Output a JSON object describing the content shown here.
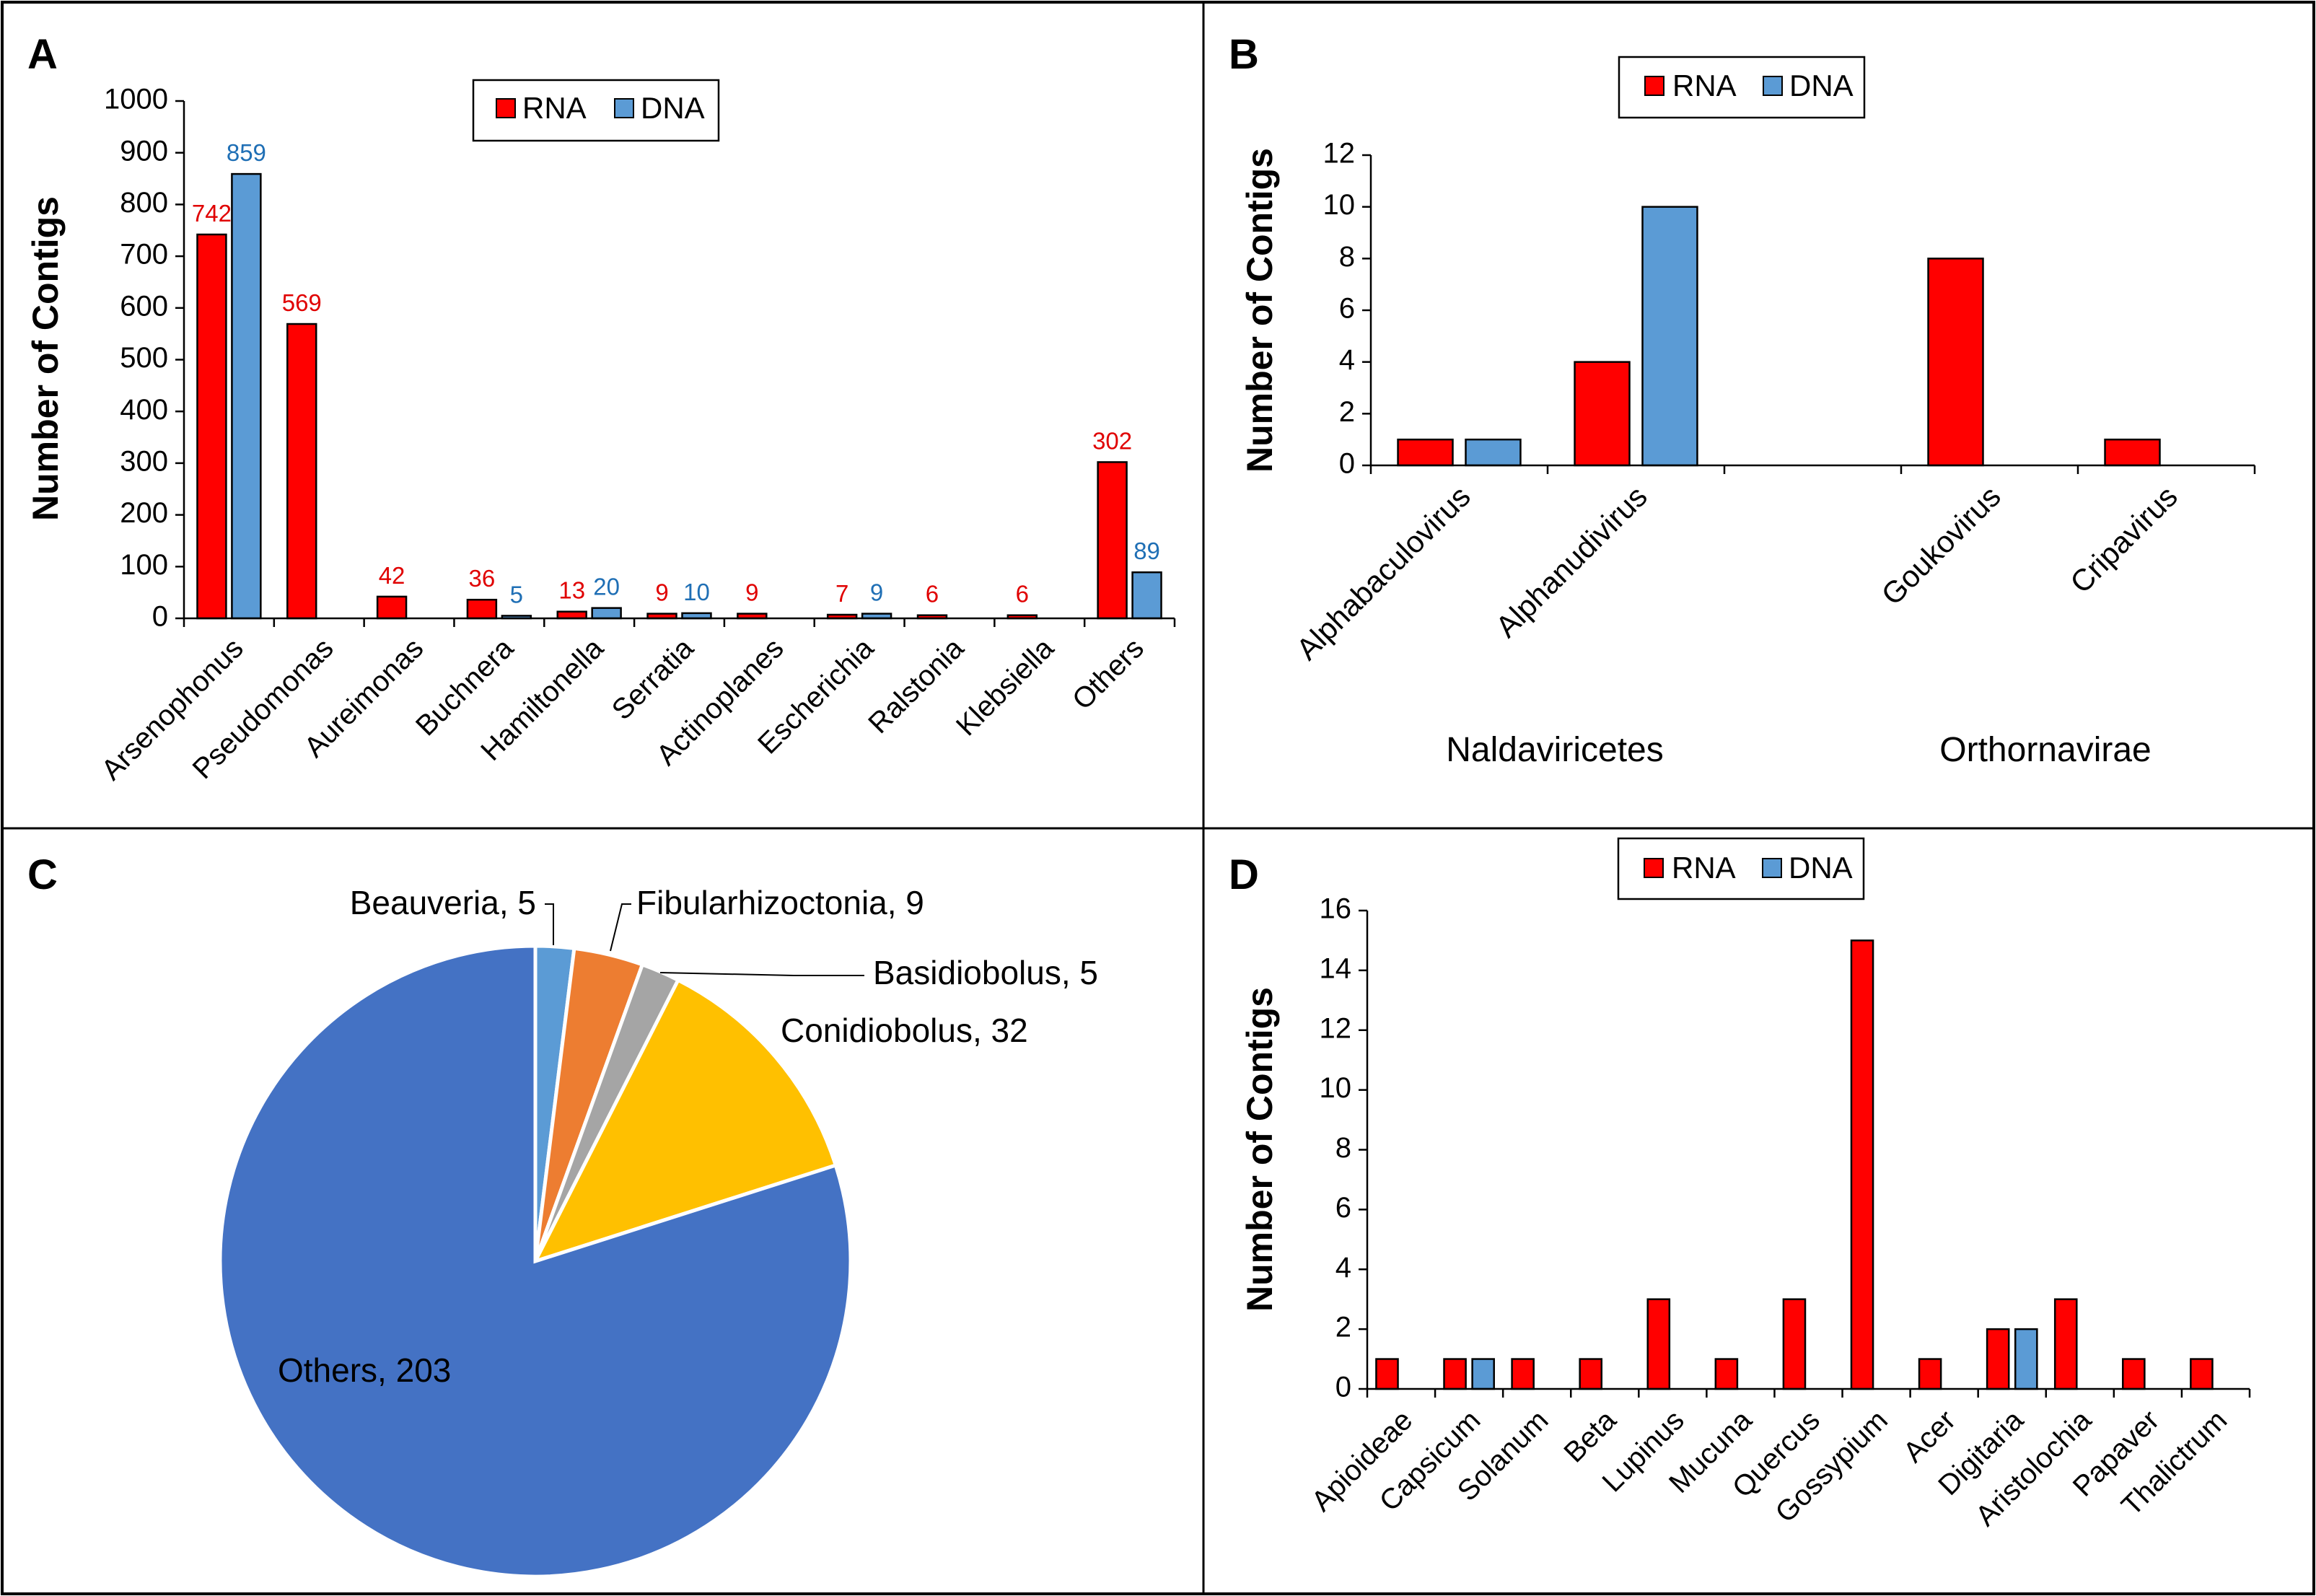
{
  "colors": {
    "rna": "#ff0000",
    "dna": "#5b9bd5",
    "rna_label": "#e00000",
    "dna_label": "#1f6fb5",
    "axis": "#000000"
  },
  "legend": {
    "rna": "RNA",
    "dna": "DNA"
  },
  "panel_labels": {
    "a": "A",
    "b": "B",
    "c": "C",
    "d": "D"
  },
  "chart_data": [
    {
      "id": "A",
      "type": "bar",
      "ylabel": "Number of Contigs",
      "ylim": [
        0,
        1000
      ],
      "yticks": [
        0,
        100,
        200,
        300,
        400,
        500,
        600,
        700,
        800,
        900,
        1000
      ],
      "categories": [
        "Arsenophonus",
        "Pseudomonas",
        "Aureimonas",
        "Buchnera",
        "Hamiltonella",
        "Serratia",
        "Actinoplanes",
        "Escherichia",
        "Ralstonia",
        "Klebsiella",
        "Others"
      ],
      "series": [
        {
          "name": "RNA",
          "values": [
            742,
            569,
            42,
            36,
            13,
            9,
            9,
            7,
            6,
            6,
            302
          ],
          "labels": [
            "742",
            "569",
            "42",
            "36",
            "13",
            "9",
            "9",
            "7",
            "6",
            "6",
            "302"
          ]
        },
        {
          "name": "DNA",
          "values": [
            859,
            0,
            0,
            5,
            20,
            10,
            0,
            9,
            0,
            0,
            89
          ],
          "labels": [
            "859",
            "",
            "",
            "5",
            "20",
            "10",
            "",
            "9",
            "",
            "",
            "89"
          ]
        }
      ],
      "legend_position": "top-center"
    },
    {
      "id": "B",
      "type": "bar",
      "ylabel": "Number of Contigs",
      "ylim": [
        0,
        12
      ],
      "yticks": [
        0,
        2,
        4,
        6,
        8,
        10,
        12
      ],
      "categories": [
        "Alphabaculovirus",
        "Alphanudivirus",
        "",
        "Goukovirus",
        "Cripavirus"
      ],
      "groups": [
        "Naldaviricetes",
        "Orthornavirae"
      ],
      "series": [
        {
          "name": "RNA",
          "values": [
            1,
            4,
            0,
            8,
            1
          ]
        },
        {
          "name": "DNA",
          "values": [
            1,
            10,
            0,
            0,
            0
          ]
        }
      ],
      "legend_position": "top-center"
    },
    {
      "id": "C",
      "type": "pie",
      "slices": [
        {
          "label": "Beauveria, 5",
          "value": 5,
          "color": "#5b9bd5"
        },
        {
          "label": "Fibularhizoctonia, 9",
          "value": 9,
          "color": "#ed7d31"
        },
        {
          "label": "Basidiobolus, 5",
          "value": 5,
          "color": "#a5a5a5"
        },
        {
          "label": "Conidiobolus, 32",
          "value": 32,
          "color": "#ffc000"
        },
        {
          "label": "Others, 203",
          "value": 203,
          "color": "#4472c4"
        }
      ]
    },
    {
      "id": "D",
      "type": "bar",
      "ylabel": "Number of Contigs",
      "ylim": [
        0,
        16
      ],
      "yticks": [
        0,
        2,
        4,
        6,
        8,
        10,
        12,
        14,
        16
      ],
      "categories": [
        "Apioideae",
        "Capsicum",
        "Solanum",
        "Beta",
        "Lupinus",
        "Mucuna",
        "Quercus",
        "Gossypium",
        "Acer",
        "Digitaria",
        "Aristolochia",
        "Papaver",
        "Thalictrum"
      ],
      "series": [
        {
          "name": "RNA",
          "values": [
            1,
            1,
            1,
            1,
            3,
            1,
            3,
            15,
            1,
            2,
            3,
            1,
            1
          ]
        },
        {
          "name": "DNA",
          "values": [
            0,
            1,
            0,
            0,
            0,
            0,
            0,
            0,
            0,
            2,
            0,
            0,
            0
          ]
        }
      ],
      "legend_position": "top-center"
    }
  ]
}
